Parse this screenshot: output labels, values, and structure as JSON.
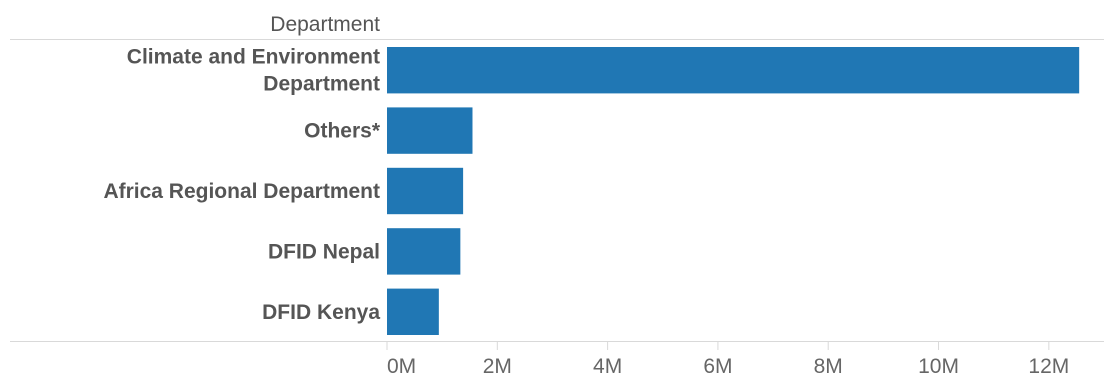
{
  "chart_data": {
    "type": "bar",
    "orientation": "horizontal",
    "row_header": "Department",
    "categories": [
      [
        "Climate and Environment",
        "Department"
      ],
      [
        "Others*"
      ],
      [
        "Africa Regional Department"
      ],
      [
        "DFID Nepal"
      ],
      [
        "DFID Kenya"
      ]
    ],
    "values": [
      12550000,
      1550000,
      1380000,
      1330000,
      940000
    ],
    "xlim": [
      0,
      13000000
    ],
    "x_ticks": [
      0,
      2000000,
      4000000,
      6000000,
      8000000,
      10000000,
      12000000
    ],
    "x_tick_labels": [
      "0M",
      "2M",
      "4M",
      "6M",
      "8M",
      "10M",
      "12M"
    ],
    "bar_color": "#2077b4",
    "grid": false
  }
}
